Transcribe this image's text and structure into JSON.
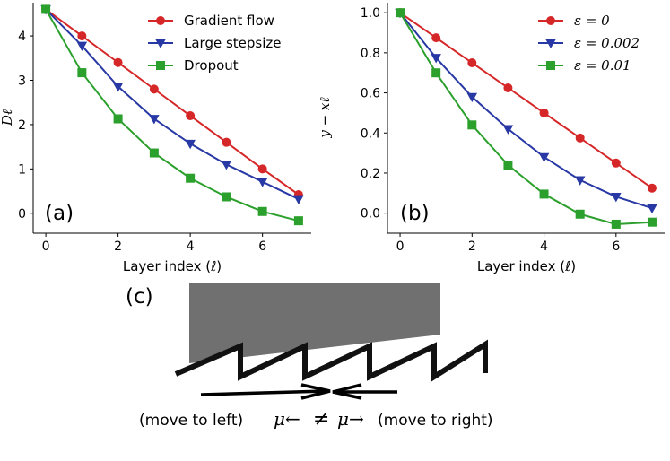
{
  "chart_data": [
    {
      "type": "line",
      "panel_label": "(a)",
      "xlabel": "Layer index (ℓ)",
      "ylabel": "Dℓ",
      "xlim": [
        -0.35,
        7.35
      ],
      "ylim": [
        -0.45,
        4.75
      ],
      "x_ticks": [
        0,
        2,
        4,
        6
      ],
      "y_ticks": [
        0,
        1,
        2,
        3,
        4
      ],
      "grid": false,
      "legend_position": "top-right",
      "x": [
        0,
        1,
        2,
        3,
        4,
        5,
        6,
        7
      ],
      "series": [
        {
          "name": "Gradient flow",
          "color": "#d62728",
          "marker": "circle",
          "values": [
            4.6,
            4.0,
            3.4,
            2.8,
            2.2,
            1.6,
            1.0,
            0.42
          ]
        },
        {
          "name": "Large stepsize",
          "color": "#2838a4",
          "marker": "triangle-down",
          "values": [
            4.6,
            3.78,
            2.86,
            2.13,
            1.57,
            1.1,
            0.71,
            0.32
          ]
        },
        {
          "name": "Dropout",
          "color": "#2ca02c",
          "marker": "square",
          "values": [
            4.6,
            3.17,
            2.13,
            1.36,
            0.79,
            0.37,
            0.04,
            -0.17
          ]
        }
      ]
    },
    {
      "type": "line",
      "panel_label": "(b)",
      "xlabel": "Layer index (ℓ)",
      "ylabel": "y − xℓ",
      "xlim": [
        -0.35,
        7.35
      ],
      "ylim": [
        -0.1,
        1.05
      ],
      "x_ticks": [
        0,
        2,
        4,
        6
      ],
      "y_ticks": [
        0.0,
        0.2,
        0.4,
        0.6,
        0.8,
        1.0
      ],
      "y_tick_labels": [
        "0.0",
        "0.2",
        "0.4",
        "0.6",
        "0.8",
        "1.0"
      ],
      "grid": false,
      "legend_position": "top-right",
      "x": [
        0,
        1,
        2,
        3,
        4,
        5,
        6,
        7
      ],
      "series": [
        {
          "name": "ε = 0",
          "color": "#d62728",
          "marker": "circle",
          "values": [
            1.0,
            0.875,
            0.75,
            0.625,
            0.5,
            0.375,
            0.25,
            0.125
          ]
        },
        {
          "name": "ε = 0.002",
          "color": "#2838a4",
          "marker": "triangle-down",
          "values": [
            1.0,
            0.775,
            0.58,
            0.42,
            0.28,
            0.165,
            0.082,
            0.025
          ]
        },
        {
          "name": "ε = 0.01",
          "color": "#2ca02c",
          "marker": "square",
          "values": [
            1.0,
            0.7,
            0.44,
            0.24,
            0.095,
            -0.005,
            -0.055,
            -0.045
          ]
        }
      ]
    }
  ],
  "diagram": {
    "panel_label": "(c)",
    "left_caption": "(move to left)",
    "right_caption": "(move to right)",
    "mu_left": "μ←",
    "neq": "≠",
    "mu_right": "μ→"
  }
}
